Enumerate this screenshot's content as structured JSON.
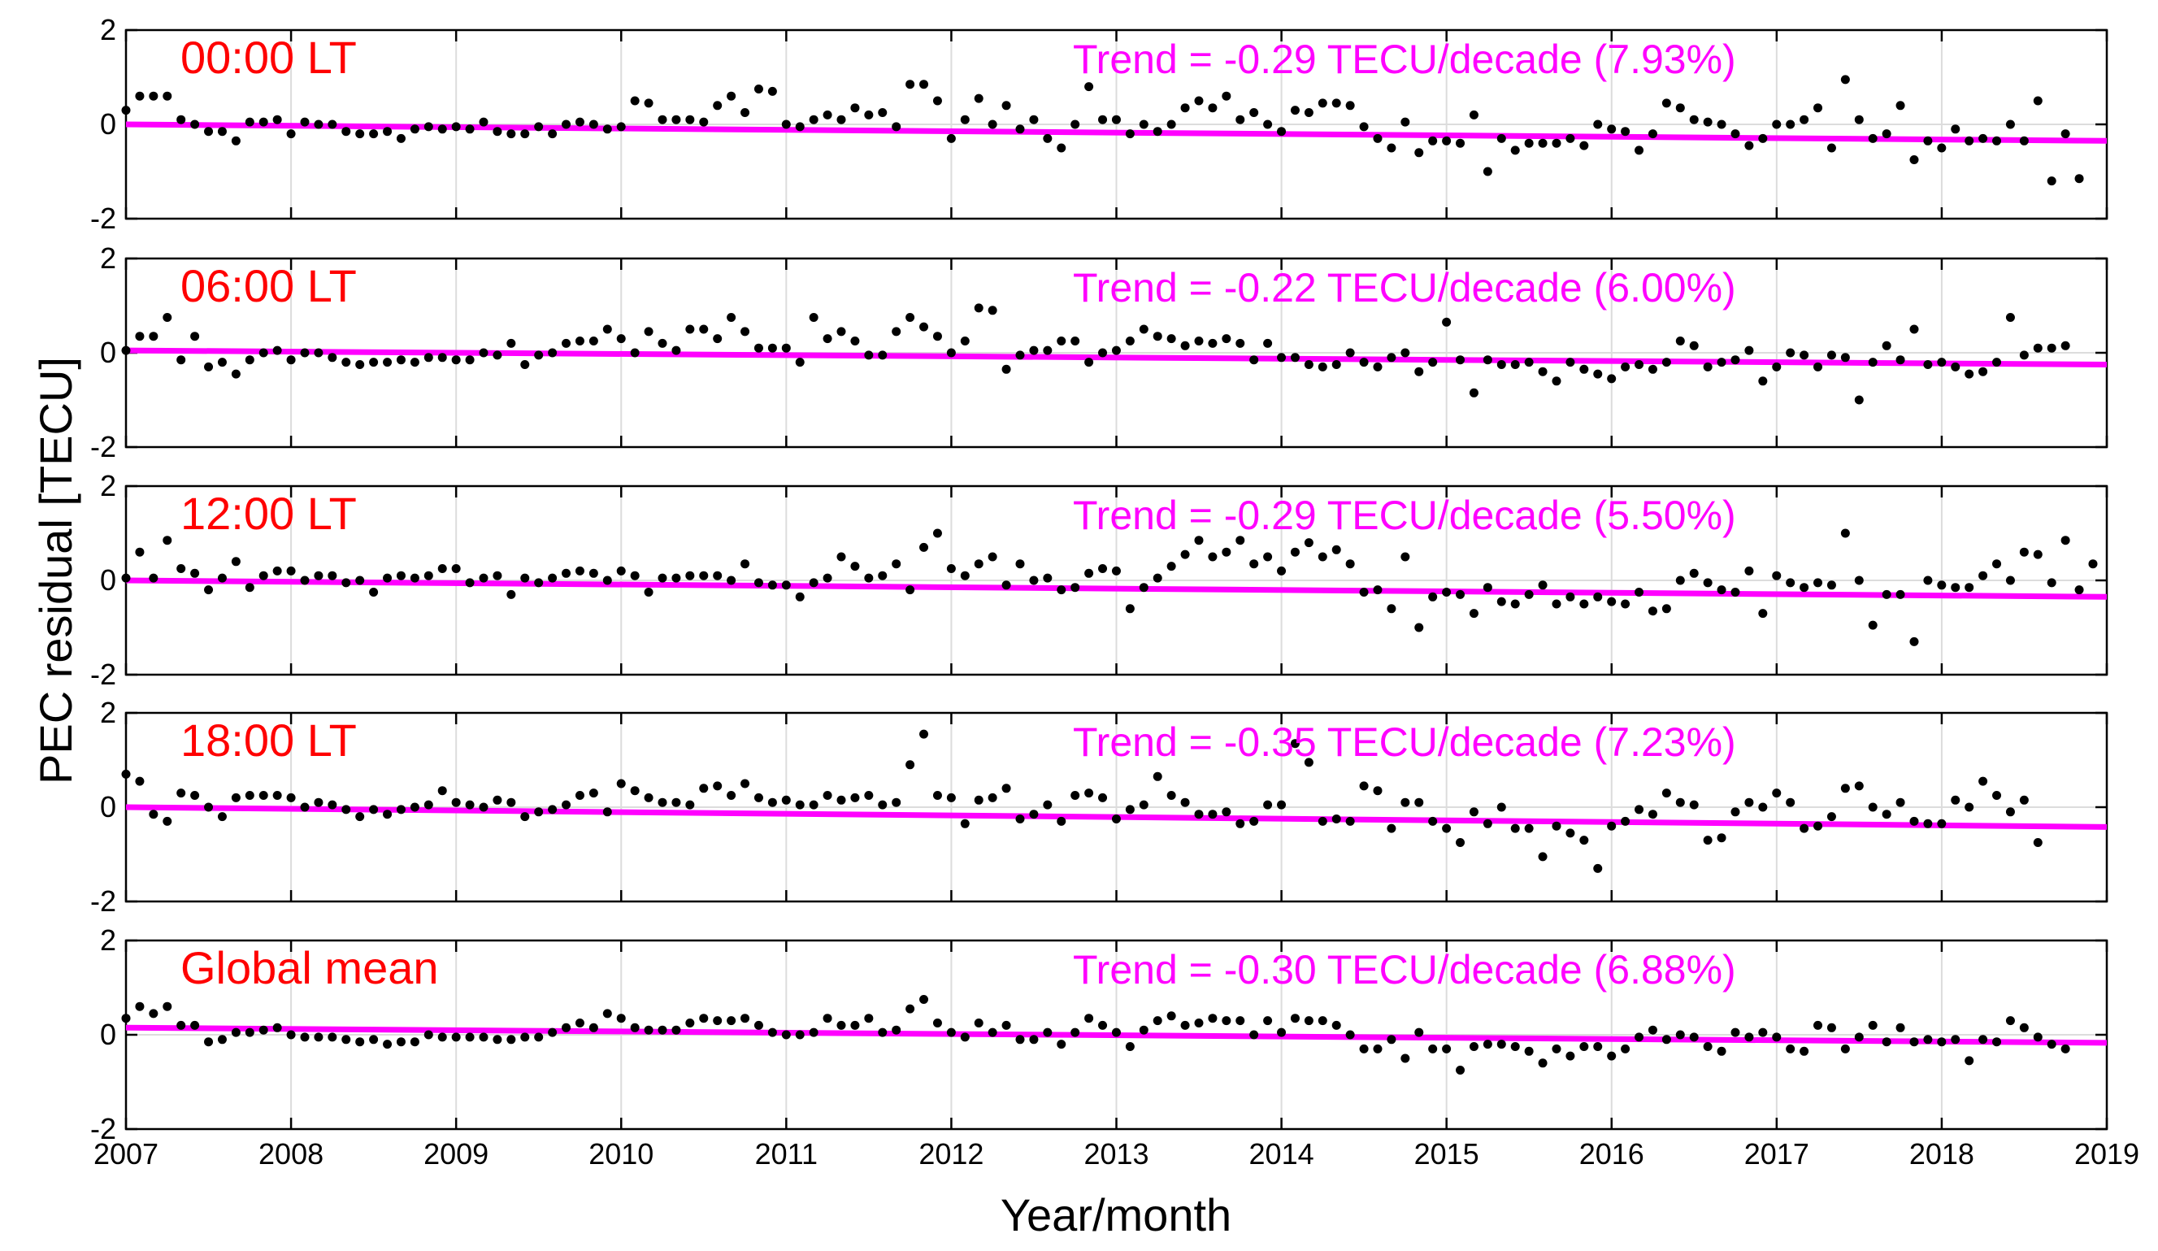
{
  "figure": {
    "ylabel": "PEC residual [TECU]",
    "xlabel": "Year/month",
    "x_ticks": [
      "2007",
      "2008",
      "2009",
      "2010",
      "2011",
      "2012",
      "2013",
      "2014",
      "2015",
      "2016",
      "2017",
      "2018",
      "2019"
    ],
    "y_ticks": [
      "-2",
      "0",
      "2"
    ],
    "colors": {
      "points": "#000000",
      "trend": "#ff00ff",
      "panel_label": "#ff0000",
      "grid": "#dcdcdc"
    }
  },
  "chart_data": [
    {
      "type": "scatter",
      "label": "00:00 LT",
      "trend_text": "Trend = -0.29 TECU/decade (7.93%)",
      "xlim": [
        2007,
        2019
      ],
      "ylim": [
        -2,
        2
      ],
      "x_start": 2007.0,
      "x_step": 0.08333,
      "values": [
        0.3,
        0.6,
        0.6,
        0.6,
        0.1,
        0.0,
        -0.15,
        -0.15,
        -0.35,
        0.05,
        0.05,
        0.1,
        -0.2,
        0.05,
        0.0,
        0.0,
        -0.15,
        -0.2,
        -0.2,
        -0.15,
        -0.3,
        -0.1,
        -0.05,
        -0.1,
        -0.05,
        -0.1,
        0.05,
        -0.15,
        -0.2,
        -0.2,
        -0.05,
        -0.2,
        0.0,
        0.05,
        0.0,
        -0.1,
        -0.05,
        0.5,
        0.45,
        0.1,
        0.1,
        0.1,
        0.05,
        0.4,
        0.6,
        0.25,
        0.75,
        0.7,
        0.0,
        -0.05,
        0.1,
        0.2,
        0.1,
        0.35,
        0.2,
        0.25,
        -0.05,
        0.85,
        0.85,
        0.5,
        -0.3,
        0.1,
        0.55,
        0.0,
        0.4,
        -0.1,
        0.1,
        -0.3,
        -0.5,
        0.0,
        0.8,
        0.1,
        0.1,
        -0.2,
        0.0,
        -0.15,
        0.0,
        0.35,
        0.5,
        0.35,
        0.6,
        0.1,
        0.25,
        0.0,
        -0.15,
        0.3,
        0.25,
        0.45,
        0.45,
        0.4,
        -0.05,
        -0.3,
        -0.5,
        0.05,
        -0.6,
        -0.35,
        -0.35,
        -0.4,
        0.2,
        -1.0,
        -0.3,
        -0.55,
        -0.4,
        -0.4,
        -0.4,
        -0.3,
        -0.45,
        0.0,
        -0.1,
        -0.15,
        -0.55,
        -0.2,
        0.45,
        0.35,
        0.1,
        0.05,
        0.0,
        -0.2,
        -0.45,
        -0.3,
        0.0,
        0.0,
        0.1,
        0.35,
        -0.5,
        0.95,
        0.1,
        -0.3,
        -0.2,
        0.4,
        -0.75,
        -0.35,
        -0.5,
        -0.1,
        -0.35,
        -0.3,
        -0.35,
        0.0,
        -0.35,
        0.5,
        -1.2,
        -0.2,
        -1.15
      ],
      "trend": [
        0.0,
        -0.35
      ]
    },
    {
      "type": "scatter",
      "label": "06:00 LT",
      "trend_text": "Trend = -0.22 TECU/decade (6.00%)",
      "xlim": [
        2007,
        2019
      ],
      "ylim": [
        -2,
        2
      ],
      "x_start": 2007.0,
      "x_step": 0.08333,
      "values": [
        0.05,
        0.35,
        0.35,
        0.75,
        -0.15,
        0.35,
        -0.3,
        -0.2,
        -0.45,
        -0.15,
        0.0,
        0.05,
        -0.15,
        0.0,
        0.0,
        -0.1,
        -0.2,
        -0.25,
        -0.2,
        -0.2,
        -0.15,
        -0.2,
        -0.1,
        -0.1,
        -0.15,
        -0.15,
        0.0,
        -0.05,
        0.2,
        -0.25,
        -0.05,
        0.0,
        0.2,
        0.25,
        0.25,
        0.5,
        0.3,
        0.0,
        0.45,
        0.2,
        0.05,
        0.5,
        0.5,
        0.3,
        0.75,
        0.45,
        0.1,
        0.1,
        0.1,
        -0.2,
        0.75,
        0.3,
        0.45,
        0.25,
        -0.05,
        -0.05,
        0.45,
        0.75,
        0.55,
        0.35,
        0.0,
        0.25,
        0.95,
        0.9,
        -0.35,
        -0.05,
        0.05,
        0.05,
        0.25,
        0.25,
        -0.2,
        0.0,
        0.05,
        0.25,
        0.5,
        0.35,
        0.3,
        0.15,
        0.25,
        0.2,
        0.3,
        0.2,
        -0.15,
        0.2,
        -0.1,
        -0.1,
        -0.25,
        -0.3,
        -0.25,
        0.0,
        -0.2,
        -0.3,
        -0.1,
        0.0,
        -0.4,
        -0.2,
        0.65,
        -0.15,
        -0.85,
        -0.15,
        -0.25,
        -0.25,
        -0.2,
        -0.4,
        -0.6,
        -0.2,
        -0.35,
        -0.45,
        -0.55,
        -0.3,
        -0.25,
        -0.35,
        -0.2,
        0.25,
        0.15,
        -0.3,
        -0.2,
        -0.15,
        0.05,
        -0.6,
        -0.3,
        0.0,
        -0.05,
        -0.3,
        -0.05,
        -0.1,
        -1.0,
        -0.2,
        0.15,
        -0.15,
        0.5,
        -0.25,
        -0.2,
        -0.3,
        -0.45,
        -0.4,
        -0.2,
        0.75,
        -0.05,
        0.1,
        0.1,
        0.15
      ],
      "trend": [
        0.05,
        -0.25
      ]
    },
    {
      "type": "scatter",
      "label": "12:00 LT",
      "trend_text": "Trend = -0.29 TECU/decade (5.50%)",
      "xlim": [
        2007,
        2019
      ],
      "ylim": [
        -2,
        2
      ],
      "x_start": 2007.0,
      "x_step": 0.08333,
      "values": [
        0.05,
        0.6,
        0.05,
        0.85,
        0.25,
        0.15,
        -0.2,
        0.05,
        0.4,
        -0.15,
        0.1,
        0.2,
        0.2,
        0.0,
        0.1,
        0.1,
        -0.05,
        0.0,
        -0.25,
        0.05,
        0.1,
        0.05,
        0.1,
        0.25,
        0.25,
        -0.05,
        0.05,
        0.1,
        -0.3,
        0.05,
        -0.05,
        0.05,
        0.15,
        0.2,
        0.15,
        0.0,
        0.2,
        0.1,
        -0.25,
        0.05,
        0.05,
        0.1,
        0.1,
        0.1,
        0.0,
        0.35,
        -0.05,
        -0.1,
        -0.1,
        -0.35,
        -0.05,
        0.05,
        0.5,
        0.3,
        0.05,
        0.1,
        0.35,
        -0.2,
        0.7,
        1.0,
        0.25,
        0.1,
        0.35,
        0.5,
        -0.1,
        0.35,
        0.0,
        0.05,
        -0.2,
        -0.15,
        0.15,
        0.25,
        0.2,
        -0.6,
        -0.15,
        0.05,
        0.3,
        0.55,
        0.85,
        0.5,
        0.6,
        0.85,
        0.35,
        0.5,
        0.2,
        0.6,
        0.8,
        0.5,
        0.65,
        0.35,
        -0.25,
        -0.2,
        -0.6,
        0.5,
        -1.0,
        -0.35,
        -0.25,
        -0.3,
        -0.7,
        -0.15,
        -0.45,
        -0.5,
        -0.3,
        -0.1,
        -0.5,
        -0.35,
        -0.5,
        -0.35,
        -0.45,
        -0.5,
        -0.25,
        -0.65,
        -0.6,
        0.0,
        0.15,
        -0.05,
        -0.2,
        -0.25,
        0.2,
        -0.7,
        0.1,
        -0.05,
        -0.15,
        -0.05,
        -0.1,
        1.0,
        0.0,
        -0.95,
        -0.3,
        -0.3,
        -1.3,
        0.0,
        -0.1,
        -0.15,
        -0.15,
        0.1,
        0.35,
        0.0,
        0.6,
        0.55,
        -0.05,
        0.85,
        -0.2,
        0.35
      ],
      "trend": [
        0.0,
        -0.35
      ]
    },
    {
      "type": "scatter",
      "label": "18:00 LT",
      "trend_text": "Trend = -0.35 TECU/decade (7.23%)",
      "xlim": [
        2007,
        2019
      ],
      "ylim": [
        -2,
        2
      ],
      "x_start": 2007.0,
      "x_step": 0.08333,
      "values": [
        0.7,
        0.55,
        -0.15,
        -0.3,
        0.3,
        0.25,
        0.0,
        -0.2,
        0.2,
        0.25,
        0.25,
        0.25,
        0.2,
        0.0,
        0.1,
        0.05,
        -0.05,
        -0.2,
        -0.05,
        -0.15,
        -0.05,
        0.0,
        0.05,
        0.35,
        0.1,
        0.05,
        0.0,
        0.15,
        0.1,
        -0.2,
        -0.1,
        -0.05,
        0.05,
        0.25,
        0.3,
        -0.1,
        0.5,
        0.35,
        0.2,
        0.1,
        0.1,
        0.05,
        0.4,
        0.45,
        0.25,
        0.5,
        0.2,
        0.1,
        0.15,
        0.05,
        0.05,
        0.25,
        0.15,
        0.2,
        0.25,
        0.05,
        0.1,
        0.9,
        1.55,
        0.25,
        0.2,
        -0.35,
        0.15,
        0.2,
        0.4,
        -0.25,
        -0.15,
        0.05,
        -0.3,
        0.25,
        0.3,
        0.2,
        -0.25,
        -0.05,
        0.05,
        0.65,
        0.25,
        0.1,
        -0.15,
        -0.15,
        -0.1,
        -0.35,
        -0.3,
        0.05,
        0.05,
        1.35,
        0.95,
        -0.3,
        -0.25,
        -0.3,
        0.45,
        0.35,
        -0.45,
        0.1,
        0.1,
        -0.3,
        -0.45,
        -0.75,
        -0.1,
        -0.35,
        0.0,
        -0.45,
        -0.45,
        -1.05,
        -0.4,
        -0.55,
        -0.7,
        -1.3,
        -0.4,
        -0.3,
        -0.05,
        -0.15,
        0.3,
        0.1,
        0.05,
        -0.7,
        -0.65,
        -0.1,
        0.1,
        0.0,
        0.3,
        0.1,
        -0.45,
        -0.4,
        -0.2,
        0.4,
        0.45,
        0.0,
        -0.15,
        0.1,
        -0.3,
        -0.35,
        -0.35,
        0.15,
        0.0,
        0.55,
        0.25,
        -0.1,
        0.15,
        -0.75
      ],
      "trend": [
        0.0,
        -0.42
      ]
    },
    {
      "type": "scatter",
      "label": "Global mean",
      "trend_text": "Trend = -0.30 TECU/decade (6.88%)",
      "xlim": [
        2007,
        2019
      ],
      "ylim": [
        -2,
        2
      ],
      "x_start": 2007.0,
      "x_step": 0.08333,
      "values": [
        0.35,
        0.6,
        0.45,
        0.6,
        0.2,
        0.2,
        -0.15,
        -0.1,
        0.05,
        0.05,
        0.1,
        0.15,
        0.0,
        -0.05,
        -0.05,
        -0.05,
        -0.1,
        -0.15,
        -0.1,
        -0.2,
        -0.15,
        -0.15,
        0.0,
        -0.05,
        -0.05,
        -0.05,
        -0.05,
        -0.1,
        -0.1,
        -0.05,
        -0.05,
        0.05,
        0.15,
        0.25,
        0.15,
        0.45,
        0.35,
        0.15,
        0.1,
        0.1,
        0.1,
        0.25,
        0.35,
        0.3,
        0.3,
        0.35,
        0.2,
        0.05,
        0.0,
        0.0,
        0.05,
        0.35,
        0.2,
        0.2,
        0.35,
        0.05,
        0.1,
        0.55,
        0.75,
        0.25,
        0.05,
        -0.05,
        0.25,
        0.05,
        0.2,
        -0.1,
        -0.1,
        0.05,
        -0.2,
        0.05,
        0.35,
        0.2,
        0.05,
        -0.25,
        0.1,
        0.3,
        0.4,
        0.2,
        0.25,
        0.35,
        0.3,
        0.3,
        0.0,
        0.3,
        0.05,
        0.35,
        0.3,
        0.3,
        0.2,
        0.0,
        -0.3,
        -0.3,
        -0.1,
        -0.5,
        0.05,
        -0.3,
        -0.3,
        -0.75,
        -0.25,
        -0.2,
        -0.2,
        -0.25,
        -0.35,
        -0.6,
        -0.3,
        -0.45,
        -0.25,
        -0.25,
        -0.45,
        -0.3,
        -0.05,
        0.1,
        -0.1,
        0.0,
        -0.05,
        -0.25,
        -0.35,
        0.05,
        -0.05,
        0.05,
        -0.05,
        -0.3,
        -0.35,
        0.2,
        0.15,
        -0.3,
        -0.05,
        0.2,
        -0.15,
        0.15,
        -0.15,
        -0.1,
        -0.15,
        -0.1,
        -0.55,
        -0.1,
        -0.15,
        0.3,
        0.15,
        -0.05,
        -0.2,
        -0.3
      ],
      "trend": [
        0.15,
        -0.17
      ]
    }
  ]
}
